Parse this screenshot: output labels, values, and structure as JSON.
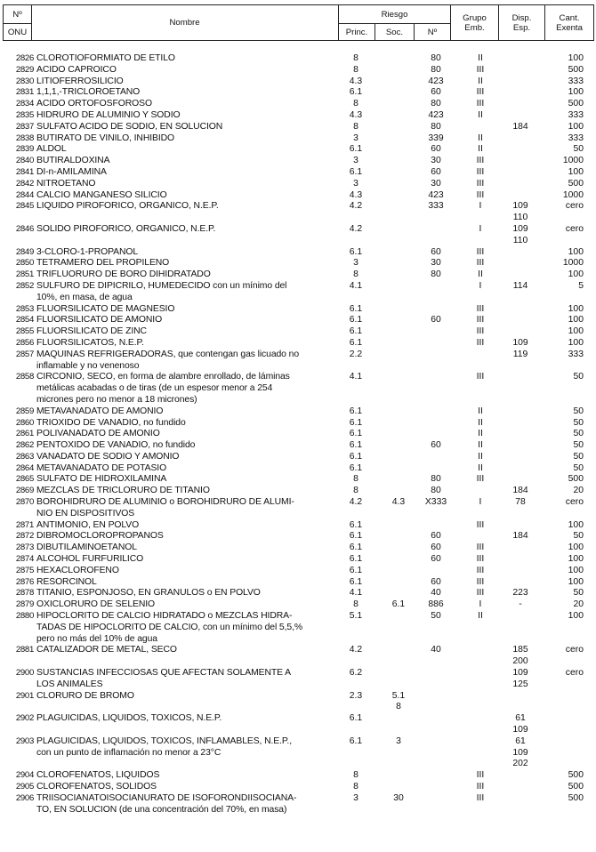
{
  "header": {
    "no": "Nº",
    "onu": "ONU",
    "nombre": "Nombre",
    "riesgo": "Riesgo",
    "princ": "Princ.",
    "soc": "Soc.",
    "riesgo_no": "Nº",
    "grupo": "Grupo Emb.",
    "disp": "Disp. Esp.",
    "cant": "Cant. Exenta"
  },
  "rows": [
    {
      "onu": "2826",
      "name": [
        "CLOROTIOFORMIATO DE ETILO"
      ],
      "princ": "8",
      "soc": "",
      "no": "80",
      "grupo": "II",
      "disp": [],
      "cant": "100"
    },
    {
      "onu": "2829",
      "name": [
        "ACIDO CAPROICO"
      ],
      "princ": "8",
      "soc": "",
      "no": "80",
      "grupo": "III",
      "disp": [],
      "cant": "500"
    },
    {
      "onu": "2830",
      "name": [
        "LITIOFERROSILICIO"
      ],
      "princ": "4.3",
      "soc": "",
      "no": "423",
      "grupo": "II",
      "disp": [],
      "cant": "333"
    },
    {
      "onu": "2831",
      "name": [
        "1,1,1,-TRICLOROETANO"
      ],
      "princ": "6.1",
      "soc": "",
      "no": "60",
      "grupo": "III",
      "disp": [],
      "cant": "100"
    },
    {
      "onu": "2834",
      "name": [
        "ACIDO ORTOFOSFOROSO"
      ],
      "princ": "8",
      "soc": "",
      "no": "80",
      "grupo": "III",
      "disp": [],
      "cant": "500"
    },
    {
      "onu": "2835",
      "name": [
        "HIDRURO DE ALUMINIO Y SODIO"
      ],
      "princ": "4.3",
      "soc": "",
      "no": "423",
      "grupo": "II",
      "disp": [],
      "cant": "333"
    },
    {
      "onu": "2837",
      "name": [
        "SULFATO ACIDO DE SODIO, EN SOLUCION"
      ],
      "princ": "8",
      "soc": "",
      "no": "80",
      "grupo": "",
      "disp": [
        "184"
      ],
      "cant": "100"
    },
    {
      "onu": "2838",
      "name": [
        "BUTIRATO DE VINILO, INHIBIDO"
      ],
      "princ": "3",
      "soc": "",
      "no": "339",
      "grupo": "II",
      "disp": [],
      "cant": "333"
    },
    {
      "onu": "2839",
      "name": [
        "ALDOL"
      ],
      "princ": "6.1",
      "soc": "",
      "no": "60",
      "grupo": "II",
      "disp": [],
      "cant": "50"
    },
    {
      "onu": "2840",
      "name": [
        "BUTIRALDOXINA"
      ],
      "princ": "3",
      "soc": "",
      "no": "30",
      "grupo": "III",
      "disp": [],
      "cant": "1000"
    },
    {
      "onu": "2841",
      "name": [
        "DI-n-AMILAMINA"
      ],
      "princ": "6.1",
      "soc": "",
      "no": "60",
      "grupo": "III",
      "disp": [],
      "cant": "100"
    },
    {
      "onu": "2842",
      "name": [
        "NITROETANO"
      ],
      "princ": "3",
      "soc": "",
      "no": "30",
      "grupo": "III",
      "disp": [],
      "cant": "500"
    },
    {
      "onu": "2844",
      "name": [
        "CALCIO MANGANESO SILICIO"
      ],
      "princ": "4.3",
      "soc": "",
      "no": "423",
      "grupo": "III",
      "disp": [],
      "cant": "1000"
    },
    {
      "onu": "2845",
      "name": [
        "LIQUIDO PIROFORICO, ORGANICO, N.E.P."
      ],
      "princ": "4.2",
      "soc": "",
      "no": "333",
      "grupo": "I",
      "disp": [
        "109",
        "110"
      ],
      "cant": "cero"
    },
    {
      "onu": "2846",
      "name": [
        "SOLIDO PIROFORICO, ORGANICO, N.E.P."
      ],
      "princ": "4.2",
      "soc": "",
      "no": "",
      "grupo": "I",
      "disp": [
        "109",
        "110"
      ],
      "cant": "cero"
    },
    {
      "onu": "2849",
      "name": [
        "3-CLORO-1-PROPANOL"
      ],
      "princ": "6.1",
      "soc": "",
      "no": "60",
      "grupo": "III",
      "disp": [],
      "cant": "100"
    },
    {
      "onu": "2850",
      "name": [
        "TETRAMERO DEL PROPILENO"
      ],
      "princ": "3",
      "soc": "",
      "no": "30",
      "grupo": "III",
      "disp": [],
      "cant": "1000"
    },
    {
      "onu": "2851",
      "name": [
        "TRIFLUORURO DE BORO DIHIDRATADO"
      ],
      "princ": "8",
      "soc": "",
      "no": "80",
      "grupo": "II",
      "disp": [],
      "cant": "100"
    },
    {
      "onu": "2852",
      "name": [
        "SULFURO DE DIPICRILO, HUMEDECIDO con un mínimo del",
        "10%, en masa, de agua"
      ],
      "princ": "4.1",
      "soc": "",
      "no": "",
      "grupo": "I",
      "disp": [
        "114"
      ],
      "cant": "5"
    },
    {
      "onu": "2853",
      "name": [
        "FLUORSILICATO DE MAGNESIO"
      ],
      "princ": "6.1",
      "soc": "",
      "no": "",
      "grupo": "III",
      "disp": [],
      "cant": "100"
    },
    {
      "onu": "2854",
      "name": [
        "FLUORSILICATO DE AMONIO"
      ],
      "princ": "6.1",
      "soc": "",
      "no": "60",
      "grupo": "III",
      "disp": [],
      "cant": "100"
    },
    {
      "onu": "2855",
      "name": [
        "FLUORSILICATO DE ZINC"
      ],
      "princ": "6.1",
      "soc": "",
      "no": "",
      "grupo": "III",
      "disp": [],
      "cant": "100"
    },
    {
      "onu": "2856",
      "name": [
        "FLUORSILICATOS, N.E.P."
      ],
      "princ": "6.1",
      "soc": "",
      "no": "",
      "grupo": "III",
      "disp": [
        "109"
      ],
      "cant": "100"
    },
    {
      "onu": "2857",
      "name": [
        "MAQUINAS REFRIGERADORAS, que contengan gas licuado no",
        "inflamable y no venenoso"
      ],
      "princ": "2.2",
      "soc": "",
      "no": "",
      "grupo": "",
      "disp": [
        "119"
      ],
      "cant": "333"
    },
    {
      "onu": "2858",
      "name": [
        "CIRCONIO, SECO, en forma de alambre enrollado, de láminas",
        "metálicas acabadas o de tiras (de un espesor menor a 254",
        "micrones pero no menor a 18 micrones)"
      ],
      "princ": "4.1",
      "soc": "",
      "no": "",
      "grupo": "III",
      "disp": [],
      "cant": "50"
    },
    {
      "onu": "2859",
      "name": [
        "METAVANADATO DE AMONIO"
      ],
      "princ": "6.1",
      "soc": "",
      "no": "",
      "grupo": "II",
      "disp": [],
      "cant": "50"
    },
    {
      "onu": "2860",
      "name": [
        "TRIOXIDO DE VANADIO, no fundido"
      ],
      "princ": "6.1",
      "soc": "",
      "no": "",
      "grupo": "II",
      "disp": [],
      "cant": "50"
    },
    {
      "onu": "2861",
      "name": [
        "POLIVANADATO DE AMONIO"
      ],
      "princ": "6.1",
      "soc": "",
      "no": "",
      "grupo": "II",
      "disp": [],
      "cant": "50"
    },
    {
      "onu": "2862",
      "name": [
        "PENTOXIDO DE VANADIO, no fundido"
      ],
      "princ": "6.1",
      "soc": "",
      "no": "60",
      "grupo": "II",
      "disp": [],
      "cant": "50"
    },
    {
      "onu": "2863",
      "name": [
        "VANADATO DE SODIO Y AMONIO"
      ],
      "princ": "6.1",
      "soc": "",
      "no": "",
      "grupo": "II",
      "disp": [],
      "cant": "50"
    },
    {
      "onu": "2864",
      "name": [
        "METAVANADATO DE POTASIO"
      ],
      "princ": "6.1",
      "soc": "",
      "no": "",
      "grupo": "II",
      "disp": [],
      "cant": "50"
    },
    {
      "onu": "2865",
      "name": [
        "SULFATO DE HIDROXILAMINA"
      ],
      "princ": "8",
      "soc": "",
      "no": "80",
      "grupo": "III",
      "disp": [],
      "cant": "500"
    },
    {
      "onu": "2869",
      "name": [
        "MEZCLAS DE TRICLORURO DE TITANIO"
      ],
      "princ": "8",
      "soc": "",
      "no": "80",
      "grupo": "",
      "disp": [
        "184"
      ],
      "cant": "20"
    },
    {
      "onu": "2870",
      "name": [
        "BOROHIDRURO DE ALUMINIO o BOROHIDRURO DE ALUMI-",
        "NIO EN DISPOSITIVOS"
      ],
      "princ": "4.2",
      "soc": "4.3",
      "no": "X333",
      "grupo": "I",
      "disp": [
        "78"
      ],
      "cant": "cero"
    },
    {
      "onu": "2871",
      "name": [
        "ANTIMONIO, EN POLVO"
      ],
      "princ": "6.1",
      "soc": "",
      "no": "",
      "grupo": "III",
      "disp": [],
      "cant": "100"
    },
    {
      "onu": "2872",
      "name": [
        "DIBROMOCLOROPROPANOS"
      ],
      "princ": "6.1",
      "soc": "",
      "no": "60",
      "grupo": "",
      "disp": [
        "184"
      ],
      "cant": "50"
    },
    {
      "onu": "2873",
      "name": [
        "DIBUTILAMINOETANOL"
      ],
      "princ": "6.1",
      "soc": "",
      "no": "60",
      "grupo": "III",
      "disp": [],
      "cant": "100"
    },
    {
      "onu": "2874",
      "name": [
        "ALCOHOL FURFURILICO"
      ],
      "princ": "6.1",
      "soc": "",
      "no": "60",
      "grupo": "III",
      "disp": [],
      "cant": "100"
    },
    {
      "onu": "2875",
      "name": [
        "HEXACLOROFENO"
      ],
      "princ": "6.1",
      "soc": "",
      "no": "",
      "grupo": "III",
      "disp": [],
      "cant": "100"
    },
    {
      "onu": "2876",
      "name": [
        "RESORCINOL"
      ],
      "princ": "6.1",
      "soc": "",
      "no": "60",
      "grupo": "III",
      "disp": [],
      "cant": "100"
    },
    {
      "onu": "2878",
      "name": [
        "TITANIO, ESPONJOSO, EN GRANULOS o EN POLVO"
      ],
      "princ": "4.1",
      "soc": "",
      "no": "40",
      "grupo": "III",
      "disp": [
        "223"
      ],
      "cant": "50"
    },
    {
      "onu": "2879",
      "name": [
        "OXICLORURO DE SELENIO"
      ],
      "princ": "8",
      "soc": "6.1",
      "no": "886",
      "grupo": "I",
      "disp": [
        "-"
      ],
      "cant": "20"
    },
    {
      "onu": "2880",
      "name": [
        "HIPOCLORITO DE CALCIO HIDRATADO o MEZCLAS HIDRA-",
        "TADAS DE HIPOCLORITO DE CALCIO, con un mínimo del 5,5,%",
        "pero no más del 10% de agua"
      ],
      "princ": "5.1",
      "soc": "",
      "no": "50",
      "grupo": "II",
      "disp": [],
      "cant": "100"
    },
    {
      "onu": "2881",
      "name": [
        "CATALIZADOR DE METAL, SECO"
      ],
      "princ": "4.2",
      "soc": "",
      "no": "40",
      "grupo": "",
      "disp": [
        "185",
        "200"
      ],
      "cant": "cero"
    },
    {
      "onu": "2900",
      "name": [
        "SUSTANCIAS INFECCIOSAS QUE AFECTAN SOLAMENTE A",
        "LOS ANIMALES"
      ],
      "princ": "6.2",
      "soc": "",
      "no": "",
      "grupo": "",
      "disp": [
        "109",
        "125"
      ],
      "cant": "cero"
    },
    {
      "onu": "2901",
      "name": [
        "CLORURO DE BROMO"
      ],
      "princ": "2.3",
      "soc": [
        "5.1",
        "8"
      ],
      "no": "",
      "grupo": "",
      "disp": [],
      "cant": ""
    },
    {
      "onu": "2902",
      "name": [
        "PLAGUICIDAS, LIQUIDOS, TOXICOS, N.E.P."
      ],
      "princ": "6.1",
      "soc": "",
      "no": "",
      "grupo": "",
      "disp": [
        "61",
        "109"
      ],
      "cant": ""
    },
    {
      "onu": "2903",
      "name": [
        "PLAGUICIDAS, LIQUIDOS, TOXICOS, INFLAMABLES, N.E.P.,",
        "con un punto de inflamación no menor a 23°C"
      ],
      "princ": "6.1",
      "soc": "3",
      "no": "",
      "grupo": "",
      "disp": [
        "61",
        "109",
        "202"
      ],
      "cant": ""
    },
    {
      "onu": "2904",
      "name": [
        "CLOROFENATOS, LIQUIDOS"
      ],
      "princ": "8",
      "soc": "",
      "no": "",
      "grupo": "III",
      "disp": [],
      "cant": "500"
    },
    {
      "onu": "2905",
      "name": [
        "CLOROFENATOS, SOLIDOS"
      ],
      "princ": "8",
      "soc": "",
      "no": "",
      "grupo": "III",
      "disp": [],
      "cant": "500"
    },
    {
      "onu": "2906",
      "name": [
        "TRIISOCIANATOISOCIANURATO DE ISOFORONDIISOCIANA-",
        "TO, EN SOLUCION (de una concentración del 70%, en masa)"
      ],
      "princ": "3",
      "soc": "30",
      "no": "",
      "grupo": "III",
      "disp": [],
      "cant": "500"
    }
  ]
}
